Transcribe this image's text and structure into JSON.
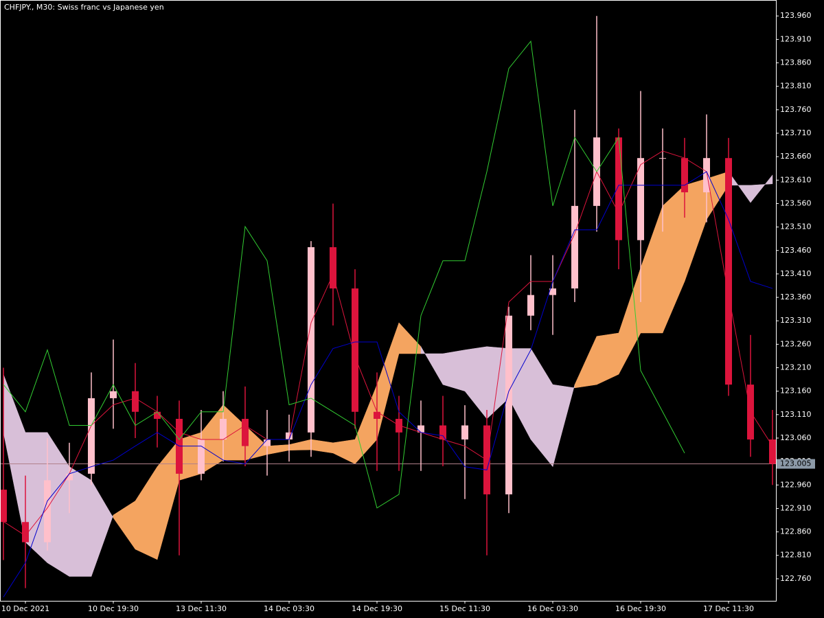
{
  "chart_data": {
    "type": "candlestick",
    "title": "CHFJPY., M30:  Swiss franc vs Japanese yen",
    "categories": [
      null,
      "10 Dec 2021",
      null,
      null,
      null,
      "10 Dec 19:30",
      null,
      null,
      null,
      "13 Dec 11:30",
      null,
      null,
      null,
      "14 Dec 03:30",
      null,
      null,
      null,
      "14 Dec 19:30",
      null,
      null,
      null,
      "15 Dec 11:30",
      null,
      null,
      null,
      "16 Dec 03:30",
      null,
      null,
      null,
      "16 Dec 19:30",
      null,
      null,
      null,
      "17 Dec 11:30",
      null,
      null
    ],
    "open": [
      122.95,
      122.881,
      122.838,
      122.97,
      122.984,
      123.145,
      123.16,
      123.116,
      123.101,
      122.984,
      123.057,
      123.101,
      123.043,
      123.057,
      123.072,
      123.467,
      123.379,
      123.116,
      123.101,
      123.072,
      123.087,
      123.057,
      123.087,
      122.94,
      123.321,
      123.365,
      123.379,
      123.555,
      123.701,
      123.482,
      123.657,
      123.657,
      123.584,
      123.657,
      123.174,
      123.057
    ],
    "high": [
      123.21,
      122.98,
      123.06,
      123.05,
      123.2,
      123.27,
      123.22,
      123.15,
      123.14,
      123.12,
      123.16,
      123.17,
      123.12,
      123.11,
      123.48,
      123.56,
      123.42,
      123.2,
      123.15,
      123.14,
      123.15,
      123.13,
      123.12,
      123.34,
      123.45,
      123.45,
      123.76,
      123.96,
      123.72,
      123.8,
      123.72,
      123.7,
      123.75,
      123.7,
      123.28,
      123.12
    ],
    "low": [
      122.8,
      122.74,
      122.82,
      122.9,
      122.96,
      123.08,
      123.06,
      123.04,
      122.81,
      122.97,
      123.01,
      123.0,
      122.98,
      123.01,
      123.02,
      123.3,
      123.08,
      122.99,
      122.99,
      122.99,
      123.0,
      122.93,
      122.81,
      122.9,
      123.29,
      123.28,
      123.35,
      123.5,
      123.42,
      123.35,
      123.5,
      123.53,
      123.52,
      123.15,
      123.02,
      122.96
    ],
    "close": [
      122.881,
      122.838,
      122.97,
      122.984,
      123.145,
      123.16,
      123.116,
      123.101,
      122.984,
      123.057,
      123.101,
      123.043,
      123.057,
      123.072,
      123.467,
      123.379,
      123.116,
      123.101,
      123.072,
      123.087,
      123.057,
      123.087,
      122.94,
      123.321,
      123.365,
      123.379,
      123.555,
      123.701,
      123.482,
      123.657,
      123.657,
      123.584,
      123.657,
      123.174,
      123.057,
      123.005
    ],
    "up_color": "#ffc0cb",
    "down_color": "#dc143c",
    "lines": [
      {
        "color": "#dc143c",
        "values": [
          122.882,
          122.852,
          122.911,
          122.984,
          123.087,
          123.131,
          123.145,
          123.116,
          123.072,
          123.057,
          123.057,
          123.087,
          123.057,
          123.057,
          123.306,
          123.409,
          123.233,
          123.116,
          123.087,
          123.072,
          123.057,
          123.043,
          123.013,
          123.35,
          123.394,
          123.394,
          123.496,
          123.628,
          123.54,
          123.643,
          123.672,
          123.657,
          123.628,
          123.365,
          123.116,
          123.043
        ]
      },
      {
        "color": "#0000cd",
        "values": [
          122.721,
          122.794,
          122.926,
          122.984,
          122.999,
          123.013,
          123.043,
          123.072,
          123.043,
          123.043,
          123.013,
          123.005,
          123.057,
          123.057,
          123.174,
          123.251,
          123.265,
          123.265,
          123.116,
          123.072,
          123.065,
          122.999,
          122.992,
          123.16,
          123.248,
          123.394,
          123.504,
          123.504,
          123.599,
          123.599,
          123.599,
          123.599,
          123.628,
          123.526,
          123.394,
          123.379
        ]
      },
      {
        "color": "#32cd32",
        "values": [
          123.174,
          123.116,
          123.248,
          123.087,
          123.087,
          123.174,
          123.087,
          123.116,
          123.057,
          123.116,
          123.116,
          123.511,
          123.438,
          123.131,
          123.145,
          123.116,
          123.087,
          122.911,
          122.94,
          123.321,
          123.438,
          123.438,
          123.628,
          123.848,
          123.906,
          123.555,
          123.701,
          123.628,
          123.701,
          123.204,
          123.116,
          123.028,
          null,
          null,
          null,
          null
        ]
      }
    ],
    "cloud": {
      "bull_color": "#f4a460",
      "bear_color": "#d8bfd8",
      "span_a": [
        123.072,
        122.838,
        122.794,
        122.765,
        122.765,
        122.896,
        122.926,
        122.999,
        123.057,
        123.072,
        123.131,
        123.087,
        123.043,
        123.046,
        123.057,
        123.05,
        123.057,
        123.174,
        123.306,
        123.255,
        123.174,
        123.16,
        123.101,
        123.145,
        123.057,
        122.999,
        123.174,
        123.277,
        123.284,
        123.423,
        123.555,
        123.599,
        123.613,
        123.628,
        123.562,
        123.621
      ],
      "span_b": [
        123.196,
        123.072,
        123.072,
        122.999,
        122.97,
        122.89,
        122.823,
        122.801,
        122.97,
        122.984,
        123.013,
        123.013,
        123.025,
        123.034,
        123.035,
        123.028,
        123.005,
        123.057,
        123.24,
        123.24,
        123.24,
        123.248,
        123.255,
        123.251,
        123.251,
        123.174,
        123.167,
        123.174,
        123.196,
        123.284,
        123.284,
        123.394,
        123.526,
        123.599,
        123.599,
        123.602
      ]
    },
    "current_price": 123.005,
    "ylim": [
      122.713,
      123.994
    ],
    "yticks": [
      {
        "value": 122.76,
        "label": "122.760"
      },
      {
        "value": 122.81,
        "label": "122.810"
      },
      {
        "value": 122.86,
        "label": "122.860"
      },
      {
        "value": 122.91,
        "label": "122.910"
      },
      {
        "value": 122.96,
        "label": "122.960"
      },
      {
        "value": 123.01,
        "label": "123.010"
      },
      {
        "value": 123.06,
        "label": "123.060"
      },
      {
        "value": 123.11,
        "label": "123.110"
      },
      {
        "value": 123.16,
        "label": "123.160"
      },
      {
        "value": 123.21,
        "label": "123.210"
      },
      {
        "value": 123.26,
        "label": "123.260"
      },
      {
        "value": 123.31,
        "label": "123.310"
      },
      {
        "value": 123.36,
        "label": "123.360"
      },
      {
        "value": 123.41,
        "label": "123.410"
      },
      {
        "value": 123.46,
        "label": "123.460"
      },
      {
        "value": 123.51,
        "label": "123.510"
      },
      {
        "value": 123.56,
        "label": "123.560"
      },
      {
        "value": 123.61,
        "label": "123.610"
      },
      {
        "value": 123.66,
        "label": "123.660"
      },
      {
        "value": 123.71,
        "label": "123.710"
      },
      {
        "value": 123.76,
        "label": "123.760"
      },
      {
        "value": 123.81,
        "label": "123.810"
      },
      {
        "value": 123.86,
        "label": "123.860"
      },
      {
        "value": 123.91,
        "label": "123.910"
      },
      {
        "value": 123.96,
        "label": "123.960"
      }
    ]
  }
}
